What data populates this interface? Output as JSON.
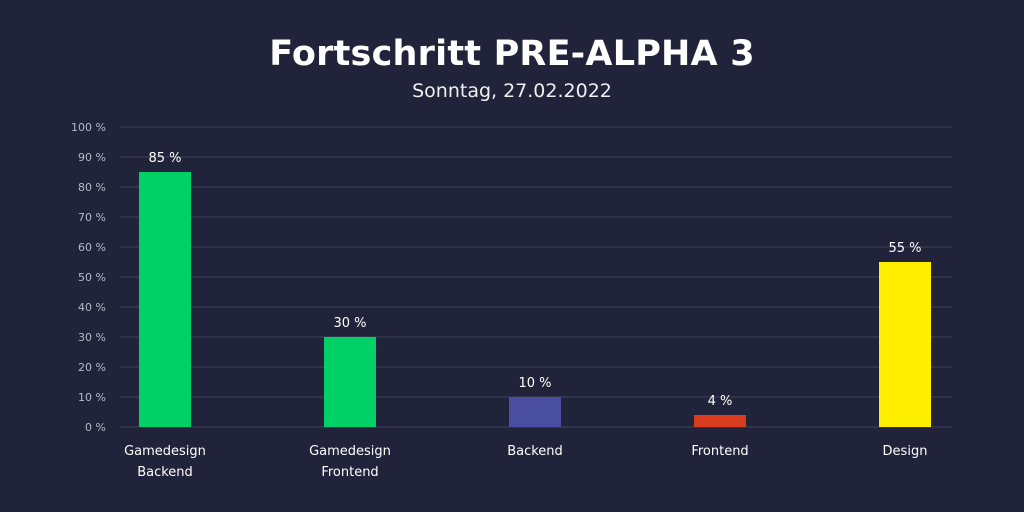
{
  "chart_data": {
    "type": "bar",
    "title": "Fortschritt PRE-ALPHA 3",
    "subtitle": "Sonntag, 27.02.2022",
    "categories": [
      [
        "Gamedesign",
        "Backend"
      ],
      [
        "Gamedesign",
        "Frontend"
      ],
      [
        "Backend"
      ],
      [
        "Frontend"
      ],
      [
        "Design"
      ]
    ],
    "values": [
      85,
      30,
      10,
      4,
      55
    ],
    "value_labels": [
      "85 %",
      "30 %",
      "10 %",
      "4 %",
      "55 %"
    ],
    "colors": [
      "#00d166",
      "#00d166",
      "#4b4fa2",
      "#d93b1e",
      "#ffee00"
    ],
    "ylim": [
      0,
      100
    ],
    "yticks": [
      0,
      10,
      20,
      30,
      40,
      50,
      60,
      70,
      80,
      90,
      100
    ],
    "ytick_labels": [
      "0 %",
      "10 %",
      "20 %",
      "30 %",
      "40 %",
      "50 %",
      "60 %",
      "70 %",
      "80 %",
      "90 %",
      "100 %"
    ],
    "grid": true,
    "legend": "none"
  },
  "theme": {
    "background": "#21233a",
    "grid_color": "#3e4058"
  }
}
